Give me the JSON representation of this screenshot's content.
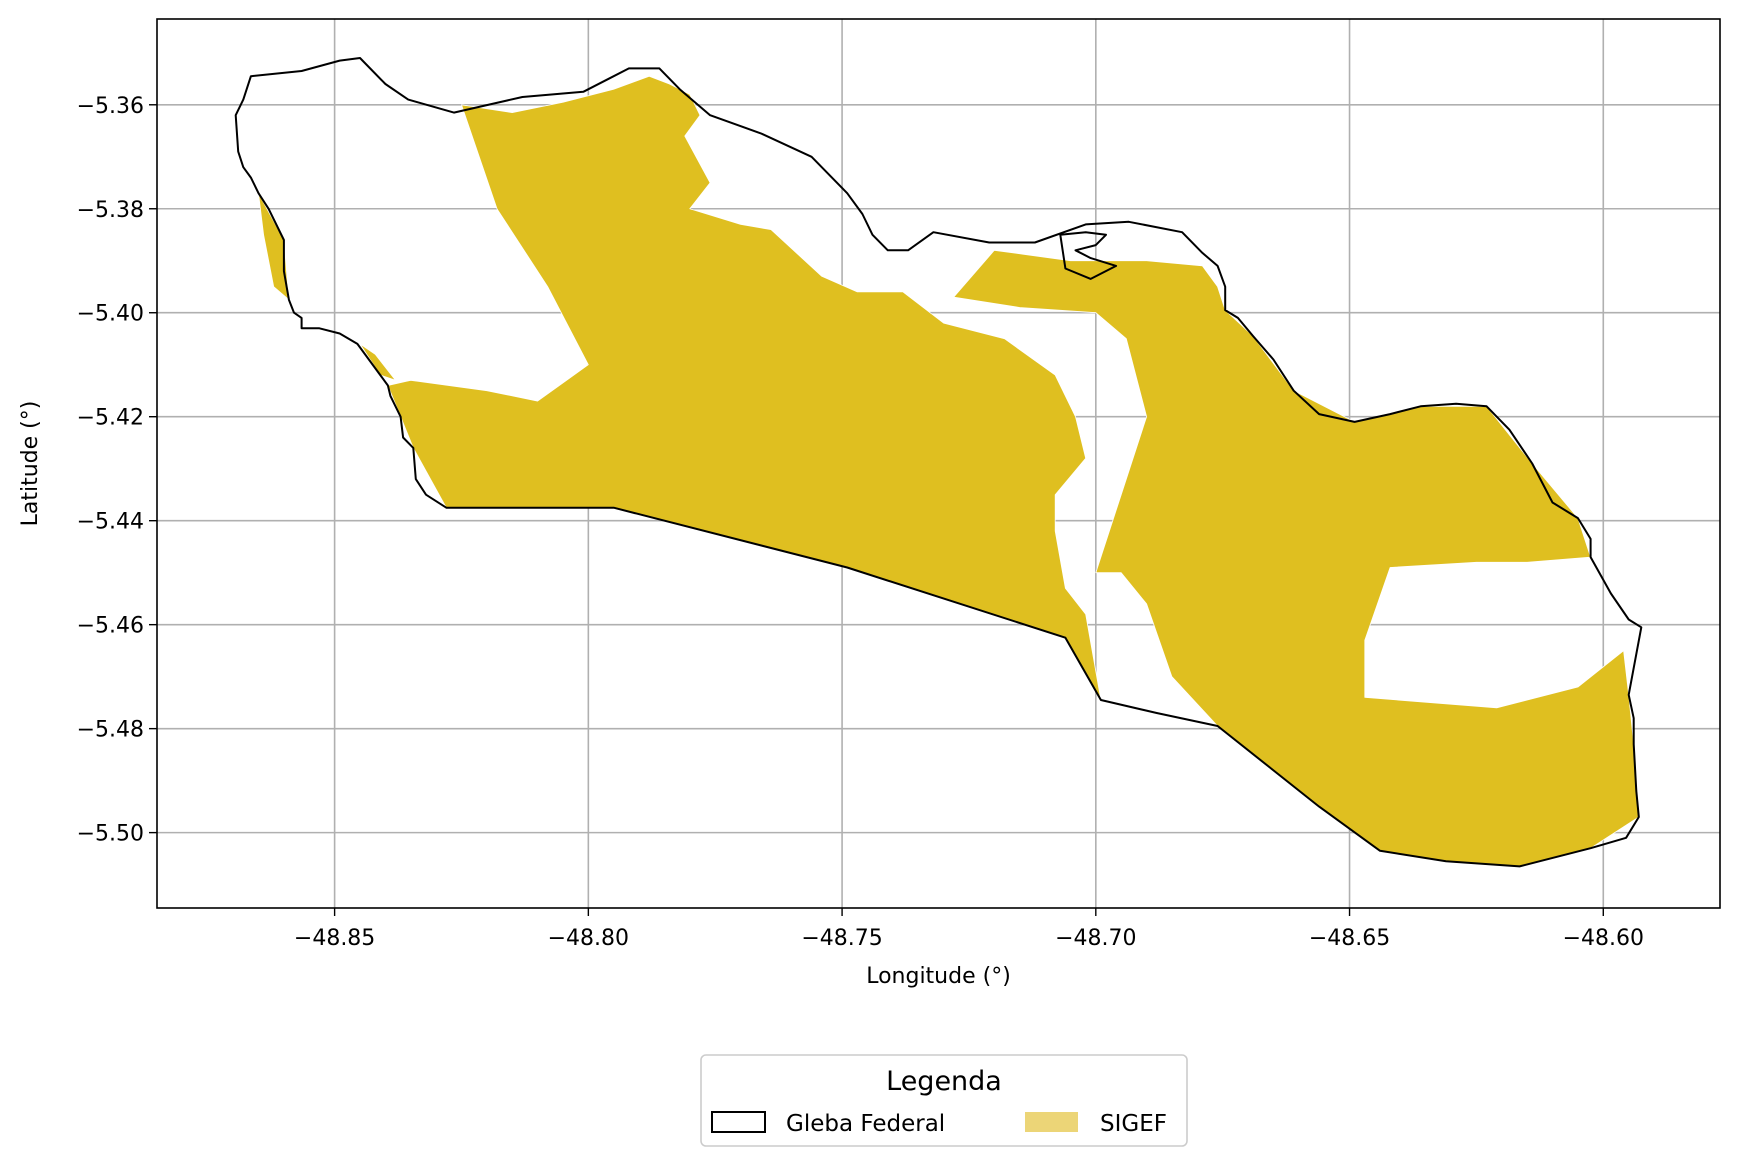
{
  "chart_data": {
    "type": "map",
    "xlabel": "Longitude (°)",
    "ylabel": "Latitude (°)",
    "xlim": [
      -48.885,
      -48.577
    ],
    "ylim": [
      -5.5145,
      -5.3435
    ],
    "xticks": [
      -48.85,
      -48.8,
      -48.75,
      -48.7,
      -48.65,
      -48.6
    ],
    "xtick_labels": [
      "−48.85",
      "−48.80",
      "−48.75",
      "−48.70",
      "−48.65",
      "−48.60"
    ],
    "yticks": [
      -5.36,
      -5.38,
      -5.4,
      -5.42,
      -5.44,
      -5.46,
      -5.48,
      -5.5
    ],
    "ytick_labels": [
      "−5.36",
      "−5.38",
      "−5.40",
      "−5.42",
      "−5.44",
      "−5.46",
      "−5.48",
      "−5.50"
    ],
    "grid": true,
    "legend": {
      "title": "Legenda",
      "placement": "bottom-center",
      "entries": [
        {
          "label": "Gleba Federal",
          "style": "outline",
          "color": "#000000"
        },
        {
          "label": "SIGEF",
          "style": "fill",
          "color": "#ecd577"
        }
      ]
    },
    "layers": [
      {
        "name": "Gleba Federal",
        "style": "outline",
        "color": "#000000",
        "rings": [
          [
            [
              -48.8665,
              -5.3545
            ],
            [
              -48.8565,
              -5.3535
            ],
            [
              -48.849,
              -5.3515
            ],
            [
              -48.845,
              -5.351
            ],
            [
              -48.84,
              -5.356
            ],
            [
              -48.8355,
              -5.359
            ],
            [
              -48.8265,
              -5.3615
            ],
            [
              -48.813,
              -5.3585
            ],
            [
              -48.801,
              -5.3575
            ],
            [
              -48.796,
              -5.355
            ],
            [
              -48.792,
              -5.353
            ],
            [
              -48.786,
              -5.353
            ],
            [
              -48.782,
              -5.357
            ],
            [
              -48.776,
              -5.362
            ],
            [
              -48.766,
              -5.3655
            ],
            [
              -48.756,
              -5.37
            ],
            [
              -48.749,
              -5.377
            ],
            [
              -48.746,
              -5.381
            ],
            [
              -48.744,
              -5.385
            ],
            [
              -48.741,
              -5.388
            ],
            [
              -48.737,
              -5.388
            ],
            [
              -48.732,
              -5.3845
            ],
            [
              -48.721,
              -5.3865
            ],
            [
              -48.712,
              -5.3865
            ],
            [
              -48.702,
              -5.383
            ],
            [
              -48.6935,
              -5.3825
            ],
            [
              -48.683,
              -5.3845
            ],
            [
              -48.679,
              -5.3885
            ],
            [
              -48.676,
              -5.391
            ],
            [
              -48.6745,
              -5.395
            ],
            [
              -48.6745,
              -5.3995
            ],
            [
              -48.672,
              -5.401
            ],
            [
              -48.669,
              -5.4045
            ],
            [
              -48.665,
              -5.409
            ],
            [
              -48.661,
              -5.415
            ],
            [
              -48.656,
              -5.4195
            ],
            [
              -48.649,
              -5.421
            ],
            [
              -48.642,
              -5.4195
            ],
            [
              -48.636,
              -5.418
            ],
            [
              -48.629,
              -5.4175
            ],
            [
              -48.623,
              -5.418
            ],
            [
              -48.6185,
              -5.4225
            ],
            [
              -48.614,
              -5.429
            ],
            [
              -48.61,
              -5.4365
            ],
            [
              -48.605,
              -5.4395
            ],
            [
              -48.6025,
              -5.4435
            ],
            [
              -48.6025,
              -5.447
            ],
            [
              -48.5985,
              -5.454
            ],
            [
              -48.595,
              -5.459
            ],
            [
              -48.5925,
              -5.4605
            ],
            [
              -48.595,
              -5.4735
            ],
            [
              -48.594,
              -5.478
            ],
            [
              -48.594,
              -5.483
            ],
            [
              -48.5935,
              -5.492
            ],
            [
              -48.593,
              -5.497
            ],
            [
              -48.5955,
              -5.501
            ],
            [
              -48.6025,
              -5.503
            ],
            [
              -48.6165,
              -5.5065
            ],
            [
              -48.631,
              -5.5055
            ],
            [
              -48.644,
              -5.5035
            ],
            [
              -48.656,
              -5.495
            ],
            [
              -48.676,
              -5.4795
            ],
            [
              -48.688,
              -5.477
            ],
            [
              -48.699,
              -5.4745
            ],
            [
              -48.706,
              -5.4625
            ],
            [
              -48.749,
              -5.449
            ],
            [
              -48.795,
              -5.4375
            ],
            [
              -48.828,
              -5.4375
            ],
            [
              -48.832,
              -5.435
            ],
            [
              -48.834,
              -5.432
            ],
            [
              -48.8345,
              -5.426
            ],
            [
              -48.8365,
              -5.424
            ],
            [
              -48.837,
              -5.42
            ],
            [
              -48.839,
              -5.416
            ],
            [
              -48.8395,
              -5.414
            ],
            [
              -48.841,
              -5.412
            ],
            [
              -48.8455,
              -5.406
            ],
            [
              -48.849,
              -5.404
            ],
            [
              -48.853,
              -5.403
            ],
            [
              -48.8565,
              -5.403
            ],
            [
              -48.8565,
              -5.401
            ],
            [
              -48.858,
              -5.4
            ],
            [
              -48.859,
              -5.3975
            ],
            [
              -48.86,
              -5.392
            ],
            [
              -48.86,
              -5.386
            ],
            [
              -48.863,
              -5.38
            ],
            [
              -48.865,
              -5.377
            ],
            [
              -48.8665,
              -5.374
            ],
            [
              -48.868,
              -5.372
            ],
            [
              -48.869,
              -5.369
            ],
            [
              -48.8695,
              -5.362
            ],
            [
              -48.868,
              -5.359
            ],
            [
              -48.8665,
              -5.3545
            ]
          ],
          [
            [
              -48.707,
              -5.385
            ],
            [
              -48.702,
              -5.3845
            ],
            [
              -48.698,
              -5.385
            ],
            [
              -48.7,
              -5.387
            ],
            [
              -48.704,
              -5.388
            ],
            [
              -48.701,
              -5.3895
            ],
            [
              -48.696,
              -5.391
            ],
            [
              -48.701,
              -5.3935
            ],
            [
              -48.706,
              -5.3915
            ],
            [
              -48.707,
              -5.385
            ]
          ]
        ]
      },
      {
        "name": "SIGEF",
        "style": "fill",
        "color": "#dfbf20",
        "rings": [
          [
            [
              -48.825,
              -5.36
            ],
            [
              -48.815,
              -5.3615
            ],
            [
              -48.805,
              -5.3595
            ],
            [
              -48.795,
              -5.357
            ],
            [
              -48.788,
              -5.3545
            ],
            [
              -48.784,
              -5.356
            ],
            [
              -48.78,
              -5.358
            ],
            [
              -48.778,
              -5.362
            ],
            [
              -48.781,
              -5.366
            ],
            [
              -48.776,
              -5.375
            ],
            [
              -48.78,
              -5.38
            ],
            [
              -48.77,
              -5.383
            ],
            [
              -48.764,
              -5.384
            ],
            [
              -48.754,
              -5.393
            ],
            [
              -48.747,
              -5.396
            ],
            [
              -48.738,
              -5.396
            ],
            [
              -48.73,
              -5.402
            ],
            [
              -48.718,
              -5.405
            ],
            [
              -48.708,
              -5.412
            ],
            [
              -48.704,
              -5.42
            ],
            [
              -48.702,
              -5.428
            ],
            [
              -48.708,
              -5.435
            ],
            [
              -48.708,
              -5.442
            ],
            [
              -48.706,
              -5.453
            ],
            [
              -48.702,
              -5.458
            ],
            [
              -48.699,
              -5.4745
            ],
            [
              -48.706,
              -5.4625
            ],
            [
              -48.749,
              -5.449
            ],
            [
              -48.795,
              -5.4375
            ],
            [
              -48.828,
              -5.4375
            ],
            [
              -48.8345,
              -5.426
            ],
            [
              -48.837,
              -5.42
            ],
            [
              -48.8395,
              -5.414
            ],
            [
              -48.835,
              -5.413
            ],
            [
              -48.82,
              -5.415
            ],
            [
              -48.81,
              -5.417
            ],
            [
              -48.8,
              -5.41
            ],
            [
              -48.808,
              -5.395
            ],
            [
              -48.818,
              -5.38
            ],
            [
              -48.825,
              -5.36
            ]
          ],
          [
            [
              -48.72,
              -5.388
            ],
            [
              -48.705,
              -5.39
            ],
            [
              -48.69,
              -5.39
            ],
            [
              -48.679,
              -5.391
            ],
            [
              -48.676,
              -5.395
            ],
            [
              -48.6745,
              -5.3995
            ],
            [
              -48.669,
              -5.4045
            ],
            [
              -48.661,
              -5.415
            ],
            [
              -48.649,
              -5.421
            ],
            [
              -48.636,
              -5.418
            ],
            [
              -48.623,
              -5.418
            ],
            [
              -48.614,
              -5.429
            ],
            [
              -48.605,
              -5.4395
            ],
            [
              -48.6025,
              -5.447
            ],
            [
              -48.615,
              -5.448
            ],
            [
              -48.625,
              -5.448
            ],
            [
              -48.642,
              -5.449
            ],
            [
              -48.647,
              -5.463
            ],
            [
              -48.647,
              -5.474
            ],
            [
              -48.621,
              -5.476
            ],
            [
              -48.605,
              -5.472
            ],
            [
              -48.596,
              -5.465
            ],
            [
              -48.595,
              -5.4735
            ],
            [
              -48.594,
              -5.483
            ],
            [
              -48.593,
              -5.497
            ],
            [
              -48.6025,
              -5.503
            ],
            [
              -48.6165,
              -5.5065
            ],
            [
              -48.631,
              -5.5055
            ],
            [
              -48.644,
              -5.5035
            ],
            [
              -48.656,
              -5.495
            ],
            [
              -48.676,
              -5.4795
            ],
            [
              -48.685,
              -5.47
            ],
            [
              -48.69,
              -5.456
            ],
            [
              -48.695,
              -5.45
            ],
            [
              -48.7,
              -5.45
            ],
            [
              -48.695,
              -5.435
            ],
            [
              -48.69,
              -5.42
            ],
            [
              -48.694,
              -5.405
            ],
            [
              -48.7,
              -5.4
            ],
            [
              -48.715,
              -5.399
            ],
            [
              -48.728,
              -5.397
            ],
            [
              -48.72,
              -5.388
            ]
          ],
          [
            [
              -48.865,
              -5.377
            ],
            [
              -48.86,
              -5.386
            ],
            [
              -48.859,
              -5.3975
            ],
            [
              -48.862,
              -5.395
            ],
            [
              -48.864,
              -5.385
            ],
            [
              -48.865,
              -5.377
            ]
          ],
          [
            [
              -48.845,
              -5.406
            ],
            [
              -48.841,
              -5.412
            ],
            [
              -48.838,
              -5.413
            ],
            [
              -48.842,
              -5.408
            ],
            [
              -48.845,
              -5.406
            ]
          ]
        ]
      }
    ]
  }
}
